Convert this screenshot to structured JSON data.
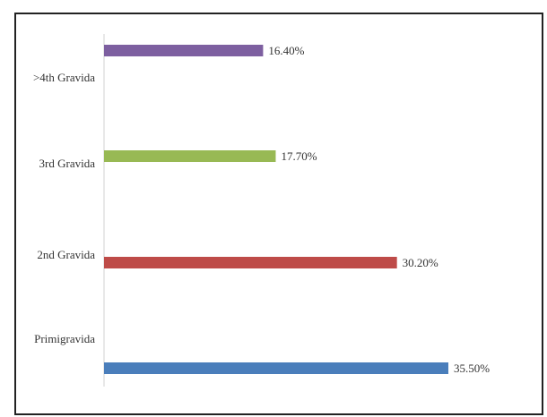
{
  "chart_data": {
    "type": "bar",
    "orientation": "horizontal",
    "categories": [
      "Primigravida",
      "2nd Gravida",
      "3rd Gravida",
      ">4th Gravida"
    ],
    "values": [
      35.5,
      30.2,
      17.7,
      16.4
    ],
    "data_labels": [
      "35.50%",
      "30.20%",
      "17.70%",
      "16.40%"
    ],
    "colors": [
      "#4a7ebb",
      "#be4b48",
      "#98b954",
      "#7d5fa0"
    ],
    "xlim": [
      0,
      40
    ],
    "grid": false,
    "legend": "none"
  }
}
